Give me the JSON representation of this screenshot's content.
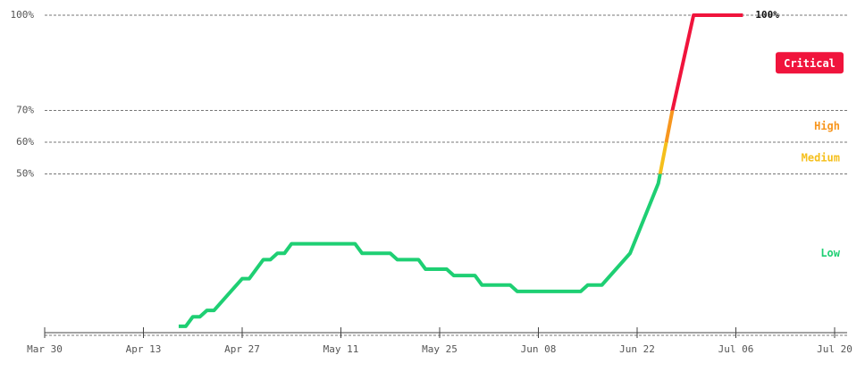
{
  "chart_data": {
    "type": "line",
    "x": [
      19,
      20,
      21,
      22,
      23,
      24,
      28,
      29,
      31,
      32,
      33,
      34,
      35,
      44,
      45,
      49,
      50,
      53,
      54,
      57,
      58,
      61,
      62,
      66,
      67,
      76,
      77,
      79,
      83,
      87,
      89,
      92,
      99
    ],
    "series": [
      {
        "values": [
          2,
          2,
          5,
          5,
          7,
          7,
          17,
          17,
          23,
          23,
          25,
          25,
          28,
          28,
          25,
          25,
          23,
          23,
          20,
          20,
          18,
          18,
          15,
          15,
          13,
          13,
          15,
          15,
          25,
          47,
          70,
          100,
          100
        ],
        "value_labels": [
          null,
          null,
          null,
          null,
          null,
          null,
          null,
          null,
          null,
          null,
          null,
          null,
          null,
          null,
          null,
          null,
          null,
          null,
          null,
          null,
          null,
          null,
          null,
          null,
          null,
          null,
          null,
          null,
          null,
          null,
          null,
          null,
          "100%"
        ]
      }
    ],
    "zones": [
      {
        "label": "Low",
        "from": 0,
        "to": 50,
        "color": "#1ecf73"
      },
      {
        "label": "Medium",
        "from": 50,
        "to": 60,
        "color": "#f5bf1b"
      },
      {
        "label": "High",
        "from": 60,
        "to": 70,
        "color": "#f7961e"
      },
      {
        "label": "Critical",
        "from": 70,
        "to": 100,
        "color": "#f0143c"
      }
    ],
    "xlim": [
      0,
      114
    ],
    "xticks": [
      {
        "value": 0,
        "label": "Mar 30"
      },
      {
        "value": 14,
        "label": "Apr 13"
      },
      {
        "value": 28,
        "label": "Apr 27"
      },
      {
        "value": 42,
        "label": "May 11"
      },
      {
        "value": 56,
        "label": "May 25"
      },
      {
        "value": 70,
        "label": "Jun 08"
      },
      {
        "value": 84,
        "label": "Jun 22"
      },
      {
        "value": 98,
        "label": "Jul 06"
      },
      {
        "value": 112,
        "label": "Jul 20"
      }
    ],
    "ylim": [
      0,
      100
    ],
    "yticks": [
      {
        "value": 50,
        "label": "50%"
      },
      {
        "value": 60,
        "label": "60%"
      },
      {
        "value": 70,
        "label": "70%"
      },
      {
        "value": 100,
        "label": "100%"
      }
    ],
    "grid": true
  }
}
